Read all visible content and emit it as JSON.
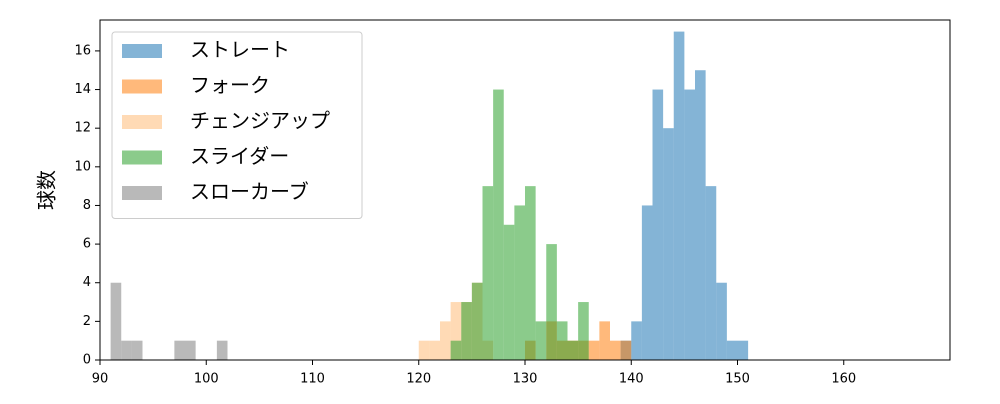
{
  "chart_data": {
    "type": "histogram",
    "ylabel": "球数",
    "xlim": [
      90,
      170
    ],
    "ylim": [
      0,
      17.6
    ],
    "xticks": [
      90,
      100,
      110,
      120,
      130,
      140,
      150,
      160
    ],
    "yticks": [
      0,
      2,
      4,
      6,
      8,
      10,
      12,
      14,
      16
    ],
    "opacity": 0.55,
    "legend": "upper left",
    "series": [
      {
        "name": "ストレート",
        "color": "#1f77b4",
        "bins": [
          139,
          140,
          141,
          142,
          143,
          144,
          145,
          146,
          147,
          148,
          149,
          150,
          151
        ],
        "values": [
          1,
          2,
          8,
          14,
          12,
          17,
          14,
          15,
          9,
          4,
          1,
          1
        ]
      },
      {
        "name": "フォーク",
        "color": "#ff7f0e",
        "bins": [
          130,
          131,
          132,
          133,
          134,
          135,
          136,
          137,
          138,
          139,
          140
        ],
        "values": [
          1,
          0,
          2,
          1,
          1,
          1,
          1,
          2,
          1,
          1
        ]
      },
      {
        "name": "チェンジアップ",
        "color": "#ffbb78",
        "bins": [
          120,
          121,
          122,
          123,
          124,
          125,
          126,
          127
        ],
        "values": [
          1,
          1,
          2,
          3,
          3,
          4,
          1
        ]
      },
      {
        "name": "スライダー",
        "color": "#2ca02c",
        "bins": [
          123,
          124,
          125,
          126,
          127,
          128,
          129,
          130,
          131,
          132,
          133,
          134,
          135,
          136
        ],
        "values": [
          1,
          3,
          4,
          9,
          14,
          7,
          8,
          9,
          2,
          6,
          2,
          1,
          3
        ]
      },
      {
        "name": "スローカーブ",
        "color": "#7f7f7f",
        "bins": [
          91,
          92,
          93,
          94,
          95,
          96,
          97,
          98,
          99,
          100,
          101,
          102
        ],
        "values": [
          4,
          1,
          1,
          0,
          0,
          0,
          1,
          1,
          0,
          0,
          1
        ]
      }
    ]
  }
}
